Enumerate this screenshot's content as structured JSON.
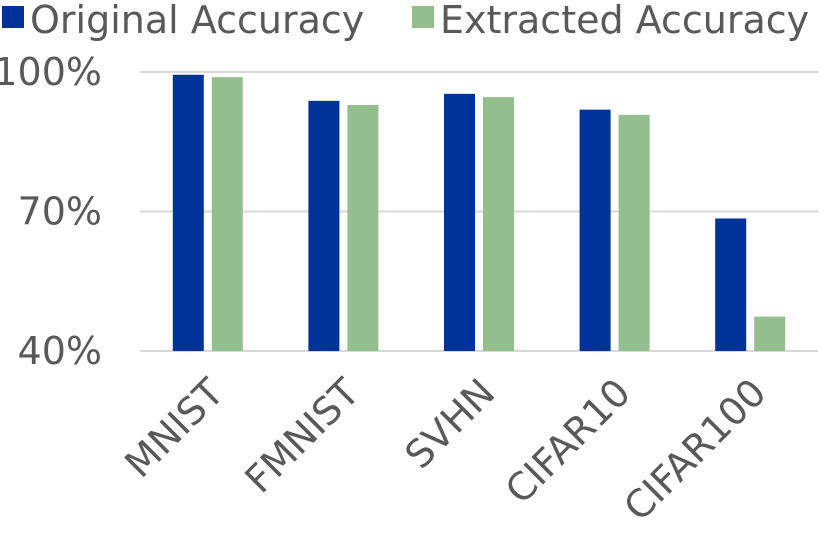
{
  "chart_data": {
    "type": "bar",
    "categories": [
      "MNIST",
      "FMNIST",
      "SVHN",
      "CIFAR10",
      "CIFAR100"
    ],
    "series": [
      {
        "name": "Original Accuracy",
        "color": "#003399",
        "values": [
          99.4,
          93.8,
          95.3,
          91.9,
          68.5
        ]
      },
      {
        "name": "Extracted Accuracy",
        "color": "#93bf8f",
        "values": [
          98.9,
          92.9,
          94.6,
          90.8,
          47.4
        ]
      }
    ],
    "yticks": [
      "40%",
      "70%",
      "100%"
    ],
    "ytick_values": [
      40,
      70,
      100
    ],
    "ylim": [
      40,
      100
    ],
    "grid": true,
    "legend": "top",
    "title": "",
    "xlabel": "",
    "ylabel": ""
  }
}
